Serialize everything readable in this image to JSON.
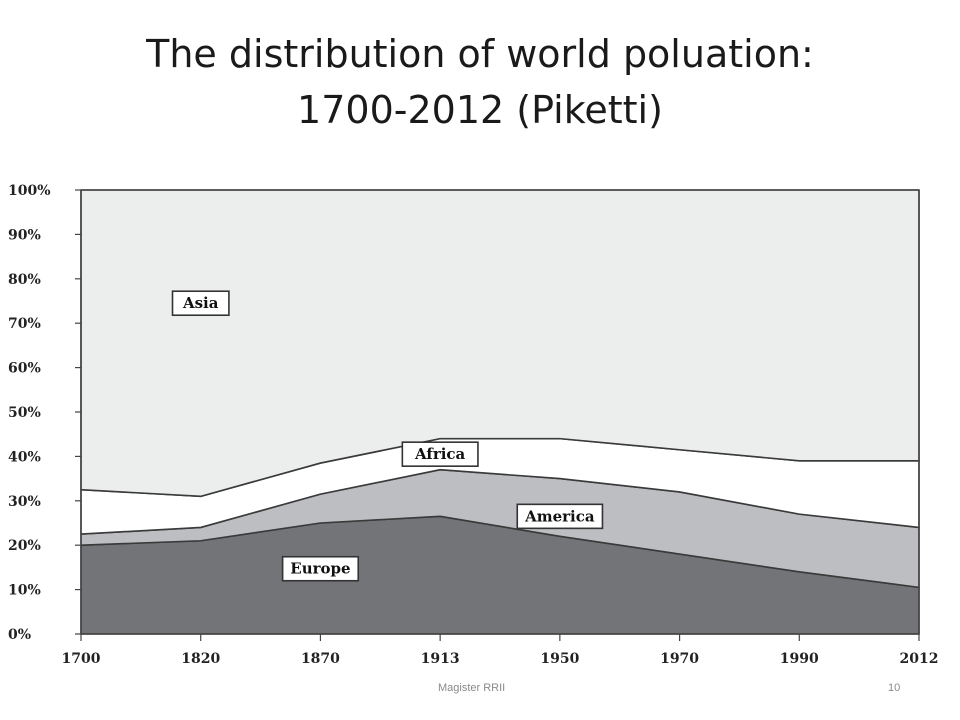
{
  "title": {
    "line1": "The distribution of world poluation:",
    "line2": "1700-2012 (Piketti)"
  },
  "footer": {
    "text": "Magister RRII",
    "page_number": "10"
  },
  "colors": {
    "background": "#ffffff",
    "europe": "#737477",
    "america": "#bdbec1",
    "africa": "#ffffff",
    "asia": "#ebeeed",
    "label_box_fill": "#ffffff",
    "text": "#222222"
  },
  "chart_data": {
    "type": "area",
    "stacked": true,
    "x": [
      "1700",
      "1820",
      "1870",
      "1913",
      "1950",
      "1970",
      "1990",
      "2012"
    ],
    "ylim": [
      0,
      100
    ],
    "yticks": [
      "0%",
      "10%",
      "20%",
      "30%",
      "40%",
      "50%",
      "60%",
      "70%",
      "80%",
      "90%",
      "100%"
    ],
    "grid": false,
    "series": [
      {
        "name": "Europe",
        "color": "#737477",
        "values": [
          20,
          21,
          25,
          26.5,
          22,
          18,
          14,
          10.5
        ],
        "label_at": {
          "x": "1870",
          "y": 14.7
        }
      },
      {
        "name": "America",
        "color": "#bdbec1",
        "values": [
          2.5,
          3,
          6.5,
          10.5,
          13,
          14,
          13,
          13.5
        ],
        "label_at": {
          "x": "1950",
          "y": 26.5
        }
      },
      {
        "name": "Africa",
        "color": "#ffffff",
        "values": [
          10,
          7,
          7,
          7,
          9,
          9.5,
          12,
          15
        ],
        "label_at": {
          "x": "1913",
          "y": 40.5
        }
      },
      {
        "name": "Asia",
        "color": "#ebeeed",
        "values": [
          67.5,
          69,
          61.5,
          56,
          56,
          58.5,
          61,
          61
        ],
        "label_at": {
          "x": "1820",
          "y": 74.5
        }
      }
    ]
  }
}
